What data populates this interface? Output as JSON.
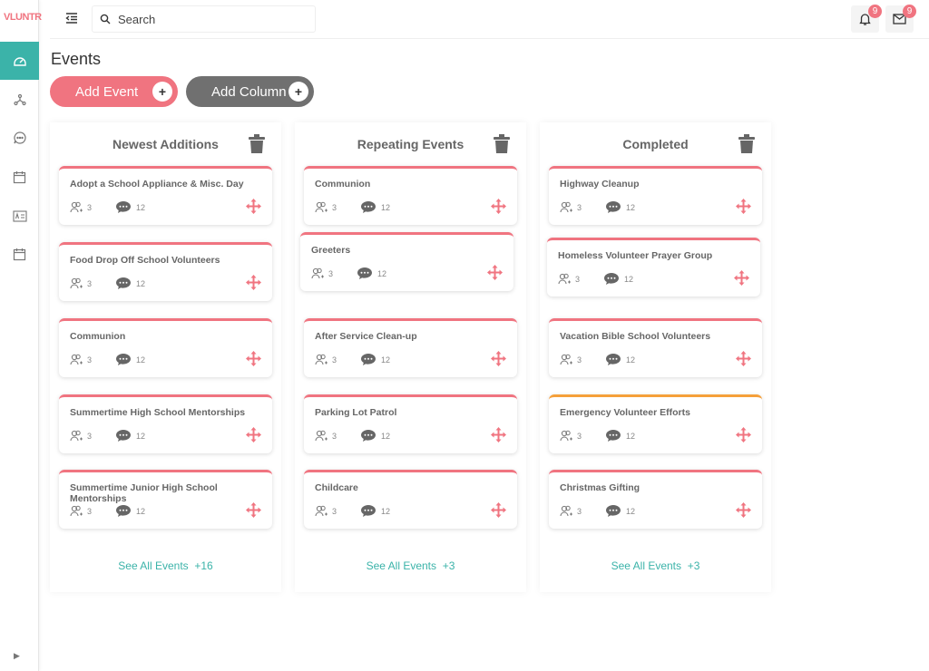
{
  "brand": "VLUNTR",
  "search": {
    "placeholder": "Search"
  },
  "notifications": {
    "count": "9"
  },
  "messages": {
    "count": "9"
  },
  "page_title": "Events",
  "buttons": {
    "add_event": "Add Event",
    "add_column": "Add Column",
    "plus": "+"
  },
  "colors": {
    "accent": "#f07480",
    "teal": "#3bb3a9",
    "warning": "#f5a03a",
    "gray_button": "#707070"
  },
  "sidebar": [
    "dashboard-icon",
    "network-icon",
    "chat-icon",
    "calendar-icon",
    "contact-card-icon",
    "calendar-icon"
  ],
  "columns": [
    {
      "title": "Newest Additions",
      "see_all": "See All Events",
      "more": "+16",
      "cards": [
        {
          "name": "Adopt a School Appliance & Misc. Day",
          "volunteers": "3",
          "comments": "12"
        },
        {
          "name": "Food Drop Off School Volunteers",
          "volunteers": "3",
          "comments": "12"
        },
        {
          "name": "Communion",
          "volunteers": "3",
          "comments": "12"
        },
        {
          "name": "Summertime High School Mentorships",
          "volunteers": "3",
          "comments": "12"
        },
        {
          "name": "Summertime Junior High School Mentorships",
          "volunteers": "3",
          "comments": "12"
        }
      ]
    },
    {
      "title": "Repeating Events",
      "see_all": "See All Events",
      "more": "+3",
      "cards": [
        {
          "name": "Communion",
          "volunteers": "3",
          "comments": "12"
        },
        {
          "name": "Greeters",
          "volunteers": "3",
          "comments": "12",
          "dragging": true
        },
        {
          "name": "After Service Clean-up",
          "volunteers": "3",
          "comments": "12"
        },
        {
          "name": "Parking Lot Patrol",
          "volunteers": "3",
          "comments": "12"
        },
        {
          "name": "Childcare",
          "volunteers": "3",
          "comments": "12"
        }
      ]
    },
    {
      "title": "Completed",
      "see_all": "See All Events",
      "more": "+3",
      "cards": [
        {
          "name": "Highway Cleanup",
          "volunteers": "3",
          "comments": "12"
        },
        {
          "name": "Homeless Volunteer Prayer Group",
          "volunteers": "3",
          "comments": "12",
          "dragging": true
        },
        {
          "name": "Vacation Bible School Volunteers",
          "volunteers": "3",
          "comments": "12"
        },
        {
          "name": "Emergency Volunteer Efforts",
          "volunteers": "3",
          "comments": "12",
          "status": "warning"
        },
        {
          "name": "Christmas Gifting",
          "volunteers": "3",
          "comments": "12"
        }
      ]
    }
  ]
}
